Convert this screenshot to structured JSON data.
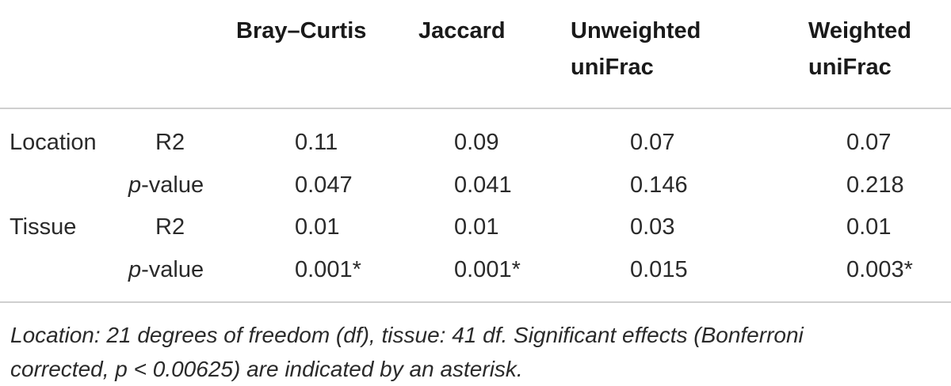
{
  "table": {
    "columns": [
      {
        "line1": "Bray–Curtis",
        "line2": ""
      },
      {
        "line1": "Jaccard",
        "line2": ""
      },
      {
        "line1": "Unweighted",
        "line2": "uniFrac"
      },
      {
        "line1": "Weighted",
        "line2": "uniFrac"
      }
    ],
    "rows": [
      {
        "group": "Location",
        "stat_prefix": "",
        "stat_suffix": "R2",
        "values": [
          "0.11",
          "0.09",
          "0.07",
          "0.07"
        ]
      },
      {
        "group": "",
        "stat_prefix": "p",
        "stat_suffix": "-value",
        "values": [
          "0.047",
          "0.041",
          "0.146",
          "0.218"
        ]
      },
      {
        "group": "Tissue",
        "stat_prefix": "",
        "stat_suffix": "R2",
        "values": [
          "0.01",
          "0.01",
          "0.03",
          "0.01"
        ]
      },
      {
        "group": "",
        "stat_prefix": "p",
        "stat_suffix": "-value",
        "values": [
          "0.001*",
          "0.001*",
          "0.015",
          "0.003*"
        ]
      }
    ]
  },
  "footnote": {
    "line1": "Location: 21 degrees of freedom (df), tissue: 41 df. Significant effects (Bonferroni",
    "line2": "corrected, p < 0.00625) are indicated by an asterisk."
  }
}
